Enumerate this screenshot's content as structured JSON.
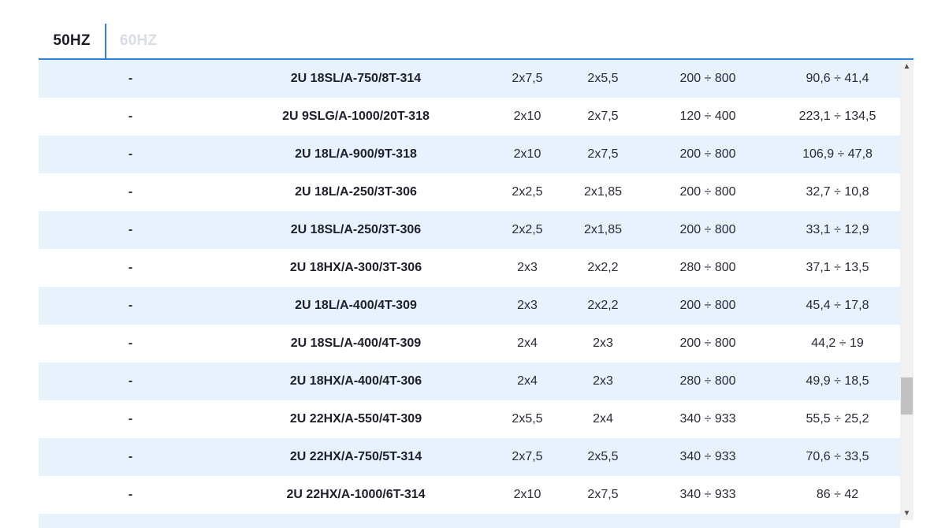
{
  "tabs": {
    "active": "50HZ",
    "inactive": "60HZ"
  },
  "table": {
    "rows": [
      {
        "dash": "-",
        "model": "2U 18SL/A-750/8T-314",
        "c1": "2x7,5",
        "c2": "2x5,5",
        "range": "200 ÷ 800",
        "flow": "90,6 ÷ 41,4"
      },
      {
        "dash": "-",
        "model": "2U 9SLG/A-1000/20T-318",
        "c1": "2x10",
        "c2": "2x7,5",
        "range": "120 ÷ 400",
        "flow": "223,1 ÷ 134,5"
      },
      {
        "dash": "-",
        "model": "2U 18L/A-900/9T-318",
        "c1": "2x10",
        "c2": "2x7,5",
        "range": "200 ÷ 800",
        "flow": "106,9 ÷ 47,8"
      },
      {
        "dash": "-",
        "model": "2U 18L/A-250/3T-306",
        "c1": "2x2,5",
        "c2": "2x1,85",
        "range": "200 ÷ 800",
        "flow": "32,7 ÷ 10,8"
      },
      {
        "dash": "-",
        "model": "2U 18SL/A-250/3T-306",
        "c1": "2x2,5",
        "c2": "2x1,85",
        "range": "200 ÷ 800",
        "flow": "33,1 ÷ 12,9"
      },
      {
        "dash": "-",
        "model": "2U 18HX/A-300/3T-306",
        "c1": "2x3",
        "c2": "2x2,2",
        "range": "280 ÷ 800",
        "flow": "37,1 ÷ 13,5"
      },
      {
        "dash": "-",
        "model": "2U 18L/A-400/4T-309",
        "c1": "2x3",
        "c2": "2x2,2",
        "range": "200 ÷ 800",
        "flow": "45,4 ÷ 17,8"
      },
      {
        "dash": "-",
        "model": "2U 18SL/A-400/4T-309",
        "c1": "2x4",
        "c2": "2x3",
        "range": "200 ÷ 800",
        "flow": "44,2 ÷ 19"
      },
      {
        "dash": "-",
        "model": "2U 18HX/A-400/4T-306",
        "c1": "2x4",
        "c2": "2x3",
        "range": "280 ÷ 800",
        "flow": "49,9 ÷ 18,5"
      },
      {
        "dash": "-",
        "model": "2U 22HX/A-550/4T-309",
        "c1": "2x5,5",
        "c2": "2x4",
        "range": "340 ÷ 933",
        "flow": "55,5 ÷ 25,2"
      },
      {
        "dash": "-",
        "model": "2U 22HX/A-750/5T-314",
        "c1": "2x7,5",
        "c2": "2x5,5",
        "range": "340 ÷ 933",
        "flow": "70,6 ÷ 33,5"
      },
      {
        "dash": "-",
        "model": "2U 22HX/A-1000/6T-314",
        "c1": "2x10",
        "c2": "2x7,5",
        "range": "340 ÷ 933",
        "flow": "86 ÷ 42"
      },
      {
        "dash": "",
        "model": "",
        "c1": "",
        "c2": "",
        "range": "",
        "flow": ""
      }
    ]
  },
  "colors": {
    "accent": "#2b83e0",
    "row_alt": "#e8f2fc",
    "inactive_tab": "#d9dde3"
  }
}
